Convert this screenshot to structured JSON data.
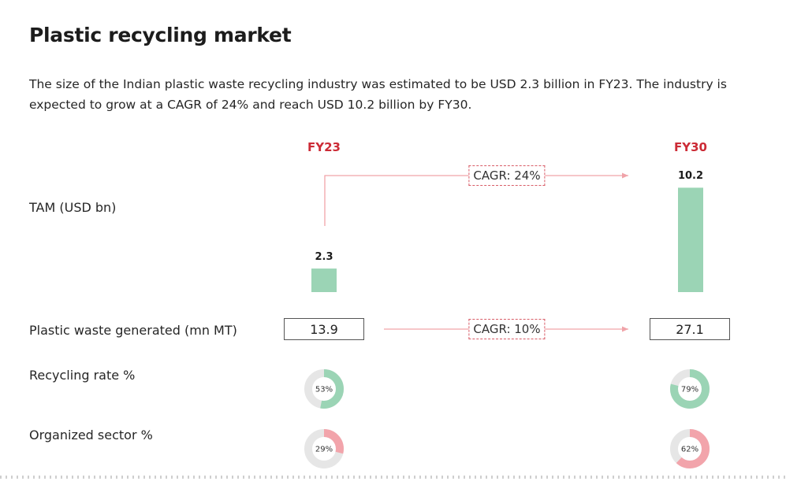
{
  "title": "Plastic recycling market",
  "description": "The size of the Indian plastic waste recycling industry was estimated to be USD 2.3 billion in FY23. The industry is expected to grow at a CAGR of 24% and reach USD 10.2 billion by FY30.",
  "colors": {
    "accent": "#cc2b36",
    "bar": "#9bd4b5",
    "recycling": "#9bd4b5",
    "organized": "#f2a4ab",
    "track": "#e6e6e6",
    "connector": "#f0a3a9"
  },
  "chart_data": {
    "type": "bar",
    "categories": [
      "FY23",
      "FY30"
    ],
    "rows": [
      {
        "label": "TAM (USD bn)",
        "kind": "bar",
        "values": [
          2.3,
          10.2
        ],
        "value_labels": [
          "2.3",
          "10.2"
        ],
        "cagr": "CAGR: 24%"
      },
      {
        "label": "Plastic waste generated (mn MT)",
        "kind": "box",
        "values": [
          13.9,
          27.1
        ],
        "value_labels": [
          "13.9",
          "27.1"
        ],
        "cagr": "CAGR: 10%"
      },
      {
        "label": "Recycling rate %",
        "kind": "donut",
        "values": [
          53,
          79
        ],
        "value_labels": [
          "53%",
          "79%"
        ]
      },
      {
        "label": "Organized sector %",
        "kind": "donut",
        "values": [
          29,
          62
        ],
        "value_labels": [
          "29%",
          "62%"
        ]
      }
    ]
  }
}
